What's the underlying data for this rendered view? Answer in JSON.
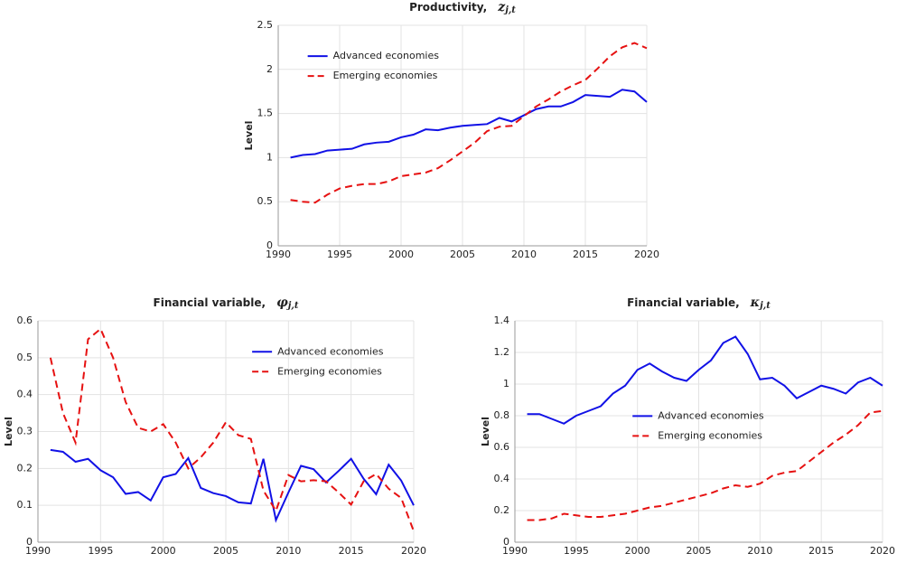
{
  "chart_data": [
    {
      "type": "line",
      "title": "Productivity,",
      "title_symbol": "z",
      "title_subscript": "j,t",
      "ylabel": "Level",
      "x": [
        1991,
        1992,
        1993,
        1994,
        1995,
        1996,
        1997,
        1998,
        1999,
        2000,
        2001,
        2002,
        2003,
        2004,
        2005,
        2006,
        2007,
        2008,
        2009,
        2010,
        2011,
        2012,
        2013,
        2014,
        2015,
        2016,
        2017,
        2018,
        2019,
        2020
      ],
      "series": [
        {
          "name": "Advanced economies",
          "color": "#1111e6",
          "line_style": "solid",
          "values": [
            1.0,
            1.03,
            1.04,
            1.08,
            1.09,
            1.1,
            1.15,
            1.17,
            1.18,
            1.23,
            1.26,
            1.32,
            1.31,
            1.34,
            1.36,
            1.37,
            1.38,
            1.45,
            1.41,
            1.48,
            1.55,
            1.58,
            1.58,
            1.63,
            1.71,
            1.7,
            1.69,
            1.77,
            1.75,
            1.63
          ]
        },
        {
          "name": "Emerging economies",
          "color": "#e61111",
          "line_style": "dashed",
          "values": [
            0.52,
            0.5,
            0.49,
            0.58,
            0.65,
            0.68,
            0.7,
            0.7,
            0.73,
            0.79,
            0.81,
            0.83,
            0.88,
            0.97,
            1.07,
            1.17,
            1.3,
            1.35,
            1.36,
            1.47,
            1.58,
            1.66,
            1.75,
            1.82,
            1.88,
            2.01,
            2.15,
            2.25,
            2.3,
            2.24
          ]
        }
      ],
      "xlim": [
        1990,
        2020
      ],
      "xticks": [
        1990,
        1995,
        2000,
        2005,
        2010,
        2015,
        2020
      ],
      "ylim": [
        0,
        2.5
      ],
      "yticks": [
        0,
        0.5,
        1,
        1.5,
        2,
        2.5
      ],
      "grid": true,
      "legend_loc": "upper left"
    },
    {
      "type": "line",
      "title": "Financial variable,",
      "title_symbol": "φ",
      "title_subscript": "j,t",
      "ylabel": "Level",
      "x": [
        1991,
        1992,
        1993,
        1994,
        1995,
        1996,
        1997,
        1998,
        1999,
        2000,
        2001,
        2002,
        2003,
        2004,
        2005,
        2006,
        2007,
        2008,
        2009,
        2010,
        2011,
        2012,
        2013,
        2014,
        2015,
        2016,
        2017,
        2018,
        2019,
        2020
      ],
      "series": [
        {
          "name": "Advanced economies",
          "color": "#1111e6",
          "line_style": "solid",
          "values": [
            0.25,
            0.245,
            0.218,
            0.226,
            0.195,
            0.176,
            0.131,
            0.136,
            0.113,
            0.176,
            0.185,
            0.228,
            0.147,
            0.133,
            0.125,
            0.108,
            0.105,
            0.226,
            0.06,
            0.135,
            0.207,
            0.198,
            0.162,
            0.193,
            0.226,
            0.172,
            0.13,
            0.21,
            0.167,
            0.1
          ]
        },
        {
          "name": "Emerging economies",
          "color": "#e61111",
          "line_style": "dashed",
          "values": [
            0.5,
            0.35,
            0.27,
            0.55,
            0.578,
            0.5,
            0.38,
            0.31,
            0.3,
            0.32,
            0.27,
            0.2,
            0.23,
            0.27,
            0.325,
            0.29,
            0.28,
            0.14,
            0.085,
            0.182,
            0.165,
            0.168,
            0.165,
            0.135,
            0.102,
            0.165,
            0.185,
            0.145,
            0.12,
            0.03
          ]
        }
      ],
      "xlim": [
        1990,
        2020
      ],
      "xticks": [
        1990,
        1995,
        2000,
        2005,
        2010,
        2015,
        2020
      ],
      "ylim": [
        0,
        0.6
      ],
      "yticks": [
        0,
        0.1,
        0.2,
        0.3,
        0.4,
        0.5,
        0.6
      ],
      "grid": true,
      "legend_loc": "upper right"
    },
    {
      "type": "line",
      "title": "Financial variable,",
      "title_symbol": "κ",
      "title_subscript": "j,t",
      "ylabel": "Level",
      "x": [
        1991,
        1992,
        1993,
        1994,
        1995,
        1996,
        1997,
        1998,
        1999,
        2000,
        2001,
        2002,
        2003,
        2004,
        2005,
        2006,
        2007,
        2008,
        2009,
        2010,
        2011,
        2012,
        2013,
        2014,
        2015,
        2016,
        2017,
        2018,
        2019,
        2020
      ],
      "series": [
        {
          "name": "Advanced economies",
          "color": "#1111e6",
          "line_style": "solid",
          "values": [
            0.81,
            0.81,
            0.78,
            0.75,
            0.8,
            0.83,
            0.86,
            0.94,
            0.99,
            1.09,
            1.13,
            1.08,
            1.04,
            1.02,
            1.09,
            1.15,
            1.26,
            1.3,
            1.19,
            1.03,
            1.04,
            0.99,
            0.91,
            0.95,
            0.99,
            0.97,
            0.94,
            1.01,
            1.04,
            0.99
          ]
        },
        {
          "name": "Emerging economies",
          "color": "#e61111",
          "line_style": "dashed",
          "values": [
            0.14,
            0.14,
            0.15,
            0.18,
            0.17,
            0.16,
            0.16,
            0.17,
            0.18,
            0.2,
            0.22,
            0.23,
            0.25,
            0.27,
            0.29,
            0.31,
            0.34,
            0.36,
            0.35,
            0.37,
            0.42,
            0.44,
            0.45,
            0.51,
            0.57,
            0.63,
            0.68,
            0.74,
            0.82,
            0.83
          ]
        }
      ],
      "xlim": [
        1990,
        2020
      ],
      "xticks": [
        1990,
        1995,
        2000,
        2005,
        2010,
        2015,
        2020
      ],
      "ylim": [
        0,
        1.4
      ],
      "yticks": [
        0,
        0.2,
        0.4,
        0.6,
        0.8,
        1,
        1.2,
        1.4
      ],
      "grid": true,
      "legend_loc": "center"
    }
  ]
}
